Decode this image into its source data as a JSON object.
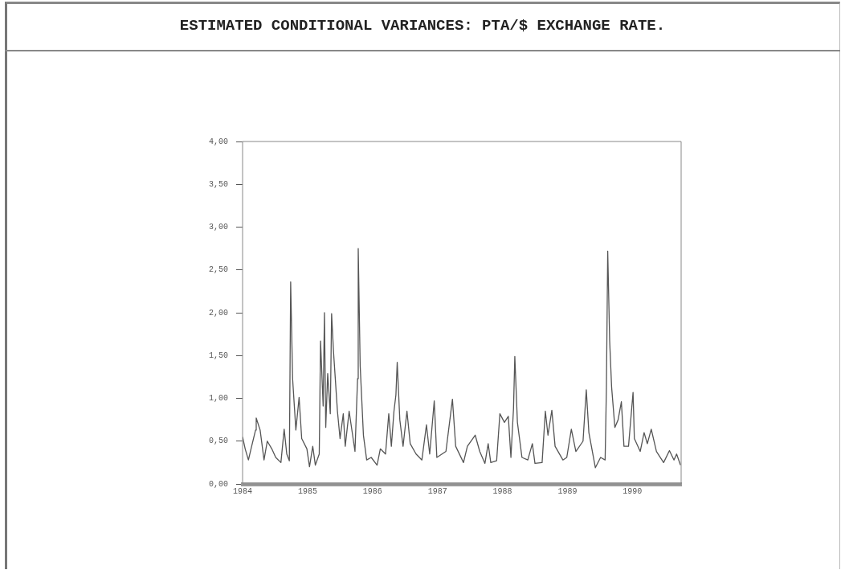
{
  "chart_data": {
    "type": "line",
    "title": "ESTIMATED CONDITIONAL VARIANCES: PTA/$ EXCHANGE RATE.",
    "x": [
      1984.0,
      1984.04,
      1984.09,
      1984.13,
      1984.2,
      1984.21,
      1984.27,
      1984.33,
      1984.38,
      1984.45,
      1984.51,
      1984.59,
      1984.64,
      1984.68,
      1984.72,
      1984.74,
      1984.77,
      1984.82,
      1984.87,
      1984.91,
      1984.99,
      1985.03,
      1985.08,
      1985.12,
      1985.18,
      1985.2,
      1985.24,
      1985.26,
      1985.28,
      1985.31,
      1985.35,
      1985.37,
      1985.4,
      1985.46,
      1985.5,
      1985.55,
      1985.58,
      1985.64,
      1985.73,
      1985.77,
      1985.78,
      1985.81,
      1985.86,
      1985.91,
      1985.98,
      1986.07,
      1986.12,
      1986.2,
      1986.25,
      1986.29,
      1986.33,
      1986.36,
      1986.38,
      1986.42,
      1986.47,
      1986.53,
      1986.58,
      1986.67,
      1986.76,
      1986.83,
      1986.88,
      1986.95,
      1986.99,
      1987.13,
      1987.23,
      1987.28,
      1987.4,
      1987.46,
      1987.58,
      1987.65,
      1987.73,
      1987.78,
      1987.82,
      1987.91,
      1987.96,
      1988.03,
      1988.09,
      1988.13,
      1988.17,
      1988.19,
      1988.23,
      1988.3,
      1988.39,
      1988.46,
      1988.5,
      1988.61,
      1988.66,
      1988.7,
      1988.76,
      1988.81,
      1988.93,
      1988.99,
      1989.06,
      1989.13,
      1989.24,
      1989.29,
      1989.33,
      1989.43,
      1989.51,
      1989.58,
      1989.6,
      1989.62,
      1989.65,
      1989.68,
      1989.73,
      1989.78,
      1989.83,
      1989.87,
      1989.94,
      1990.01,
      1990.03,
      1990.12,
      1990.18,
      1990.23,
      1990.29,
      1990.37,
      1990.48,
      1990.57,
      1990.64,
      1990.68,
      1990.74
    ],
    "series": [
      {
        "color": "#555555",
        "values": [
          0.55,
          0.41,
          0.28,
          0.41,
          0.63,
          0.77,
          0.63,
          0.28,
          0.5,
          0.41,
          0.31,
          0.25,
          0.64,
          0.35,
          0.27,
          2.36,
          1.23,
          0.63,
          1.01,
          0.53,
          0.41,
          0.2,
          0.44,
          0.22,
          0.35,
          1.67,
          0.91,
          2.0,
          0.66,
          1.29,
          0.82,
          1.99,
          1.54,
          0.85,
          0.53,
          0.82,
          0.44,
          0.85,
          0.38,
          1.23,
          2.75,
          1.38,
          0.57,
          0.28,
          0.31,
          0.22,
          0.41,
          0.35,
          0.82,
          0.44,
          0.85,
          1.04,
          1.42,
          0.75,
          0.44,
          0.85,
          0.47,
          0.35,
          0.28,
          0.69,
          0.35,
          0.97,
          0.31,
          0.38,
          0.99,
          0.44,
          0.25,
          0.44,
          0.57,
          0.38,
          0.24,
          0.47,
          0.25,
          0.27,
          0.82,
          0.72,
          0.79,
          0.31,
          0.88,
          1.49,
          0.72,
          0.31,
          0.28,
          0.47,
          0.24,
          0.25,
          0.85,
          0.57,
          0.86,
          0.44,
          0.28,
          0.31,
          0.64,
          0.38,
          0.5,
          1.1,
          0.6,
          0.19,
          0.31,
          0.28,
          1.13,
          2.72,
          1.67,
          1.13,
          0.66,
          0.75,
          0.96,
          0.44,
          0.44,
          1.07,
          0.53,
          0.38,
          0.6,
          0.47,
          0.64,
          0.38,
          0.25,
          0.39,
          0.28,
          0.35,
          0.22
        ]
      }
    ],
    "xlim": [
      1984,
      1990.75
    ],
    "xticks": [
      1984,
      1985,
      1986,
      1987,
      1988,
      1989,
      1990
    ],
    "ylim": [
      0,
      4
    ],
    "yticks": [
      {
        "value": 0,
        "label": "0,00"
      },
      {
        "value": 0.5,
        "label": "0,50"
      },
      {
        "value": 1,
        "label": "1,00"
      },
      {
        "value": 1.5,
        "label": "1,50"
      },
      {
        "value": 2,
        "label": "2,00"
      },
      {
        "value": 2.5,
        "label": "2,50"
      },
      {
        "value": 3,
        "label": "3,00"
      },
      {
        "value": 3.5,
        "label": "3,50"
      },
      {
        "value": 4,
        "label": "4,00"
      }
    ],
    "legend": false,
    "marker": "none",
    "line_style": "solid"
  }
}
